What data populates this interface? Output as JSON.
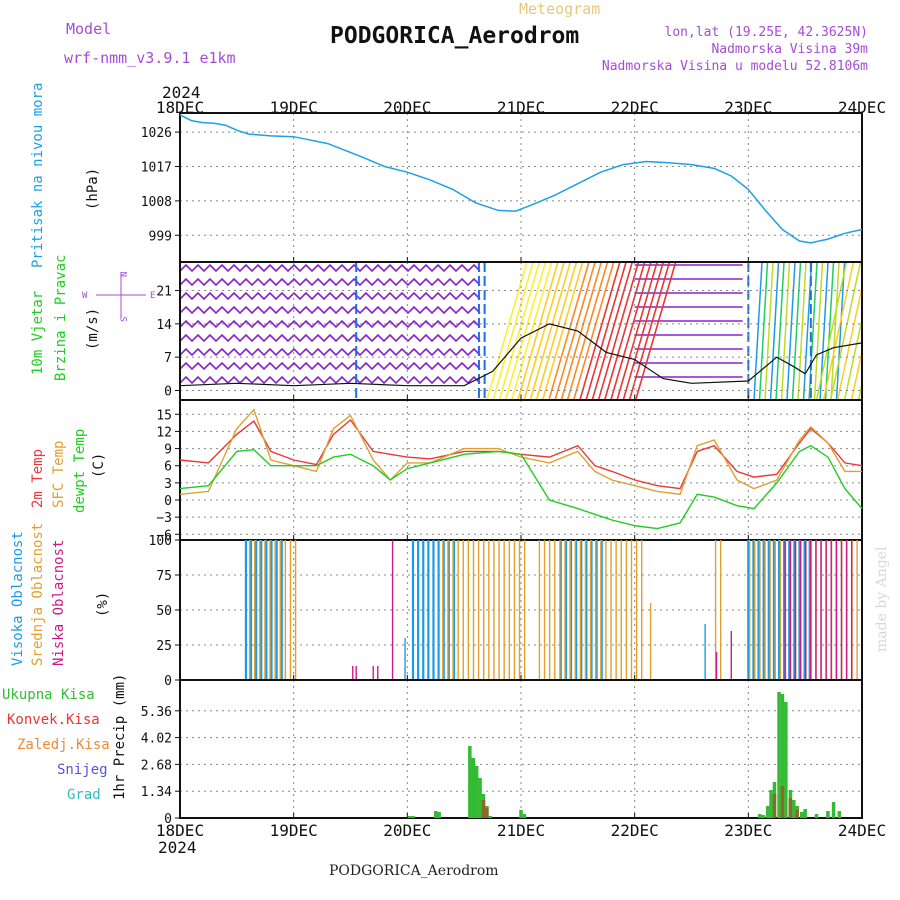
{
  "header": {
    "model_label": "Model",
    "model_name": "wrf-nmm_v3.9.1 e1km",
    "meteogram_label": "Meteogram",
    "station": "PODGORICA_Aerodrom",
    "coords": "lon,lat (19.25E, 42.3625N)",
    "elevation": "Nadmorska Visina 39m",
    "model_elevation": "Nadmorska Visina u modelu 52.8106m",
    "year_top": "2024",
    "year_bottom": "2024",
    "footer_station": "PODGORICA_Aerodrom",
    "watermark": "made by Angel"
  },
  "colors": {
    "pressure": "#1ea0e6",
    "wind_label": "#22cc22",
    "temp2m": "#e83a3a",
    "sfc": "#e0a030",
    "dewpt": "#22cc22",
    "high_cloud": "#1e9be6",
    "mid_cloud": "#e0a030",
    "low_cloud": "#cc1a8a",
    "total_precip": "#33bb33",
    "conv_precip": "#ee3333",
    "frozen_precip": "#ee8833",
    "snow": "#5555dd",
    "hail": "#33bbbb",
    "model_text": "#a64bd6",
    "wind_barb": "#8822cc"
  },
  "chart_data": [
    {
      "type": "line",
      "name": "pressure-panel",
      "ylabel_main": "Pritisak na nivou mora",
      "ylabel_unit": "(hPa)",
      "x_ticks": [
        "18DEC",
        "19DEC",
        "20DEC",
        "21DEC",
        "22DEC",
        "23DEC",
        "24DEC"
      ],
      "ylim": [
        992,
        1031
      ],
      "y_ticks": [
        999,
        1008,
        1017,
        1026
      ],
      "x": [
        0,
        0.1,
        0.2,
        0.3,
        0.4,
        0.5,
        0.6,
        0.8,
        1.0,
        1.3,
        1.6,
        1.8,
        2.0,
        2.2,
        2.4,
        2.6,
        2.8,
        2.95,
        3.1,
        3.3,
        3.5,
        3.7,
        3.9,
        4.1,
        4.3,
        4.5,
        4.7,
        4.85,
        5.0,
        5.15,
        5.3,
        5.45,
        5.55,
        5.7,
        5.85,
        6.0
      ],
      "values": [
        1030.5,
        1029.0,
        1028.5,
        1028.3,
        1027.8,
        1026.5,
        1025.5,
        1025.0,
        1024.8,
        1023.0,
        1019.5,
        1017.0,
        1015.5,
        1013.5,
        1011.0,
        1007.5,
        1005.5,
        1005.3,
        1007.0,
        1009.5,
        1012.5,
        1015.5,
        1017.5,
        1018.3,
        1018.0,
        1017.5,
        1016.5,
        1014.5,
        1011.0,
        1005.5,
        1000.5,
        997.5,
        997.0,
        998.0,
        999.5,
        1000.5
      ]
    },
    {
      "type": "line",
      "name": "wind-panel",
      "ylabel_main": "10m Vjetar",
      "ylabel_sub": "Brzina i Pravac",
      "ylabel_unit": "(m/s)",
      "compass": "N W E S",
      "ylim": [
        -2,
        27
      ],
      "y_ticks": [
        0,
        7,
        14,
        21
      ],
      "x": [
        0,
        0.5,
        1.0,
        1.5,
        2.0,
        2.5,
        2.75,
        3.0,
        3.25,
        3.5,
        3.75,
        4.0,
        4.25,
        4.5,
        5.0,
        5.25,
        5.4,
        5.5,
        5.6,
        5.75,
        6.0
      ],
      "values": [
        1.0,
        1.5,
        1.0,
        1.5,
        1.0,
        1.0,
        4.0,
        11.0,
        14.0,
        12.5,
        8.0,
        6.5,
        2.5,
        1.5,
        2.0,
        7.0,
        5.0,
        3.5,
        7.5,
        9.0,
        10.0
      ]
    },
    {
      "type": "line",
      "name": "temperature-panel",
      "ylabel_lines": [
        "2m Temp",
        "SFC Temp",
        "dewpt Temp"
      ],
      "ylabel_unit": "(C)",
      "ylim": [
        -7,
        17.5
      ],
      "y_ticks": [
        -6,
        -3,
        0,
        3,
        6,
        9,
        12,
        15
      ],
      "x": [
        0,
        0.25,
        0.5,
        0.65,
        0.8,
        1.0,
        1.2,
        1.35,
        1.5,
        1.7,
        1.85,
        2.0,
        2.2,
        2.5,
        2.8,
        3.0,
        3.25,
        3.5,
        3.65,
        3.8,
        4.0,
        4.2,
        4.4,
        4.55,
        4.7,
        4.9,
        5.05,
        5.25,
        5.45,
        5.55,
        5.7,
        5.85,
        6.0
      ],
      "series": [
        {
          "name": "2m Temp",
          "values": [
            7.0,
            6.5,
            11.5,
            13.8,
            8.5,
            7.0,
            6.2,
            11.5,
            14.0,
            8.5,
            8.0,
            7.5,
            7.2,
            8.5,
            8.5,
            8.0,
            7.5,
            9.5,
            6.0,
            5.0,
            3.5,
            2.5,
            2.0,
            8.5,
            9.5,
            5.0,
            4.0,
            4.5,
            10.0,
            12.5,
            10.0,
            6.5,
            6.0
          ]
        },
        {
          "name": "SFC Temp",
          "values": [
            1.0,
            1.5,
            12.5,
            15.8,
            7.0,
            6.0,
            5.0,
            12.5,
            14.8,
            7.0,
            3.5,
            6.5,
            6.5,
            9.0,
            9.0,
            7.5,
            6.5,
            8.5,
            5.0,
            3.5,
            2.5,
            1.5,
            1.0,
            9.5,
            10.5,
            3.5,
            2.0,
            3.5,
            10.5,
            12.8,
            10.0,
            5.0,
            5.0
          ]
        },
        {
          "name": "dewpt Temp",
          "values": [
            2.0,
            2.5,
            8.5,
            8.8,
            6.0,
            6.0,
            6.0,
            7.5,
            8.0,
            6.0,
            3.5,
            5.5,
            6.5,
            8.0,
            8.5,
            8.0,
            0.0,
            -1.5,
            -2.5,
            -3.5,
            -4.5,
            -5.0,
            -4.0,
            1.0,
            0.5,
            -1.0,
            -1.5,
            3.0,
            8.5,
            9.5,
            7.5,
            2.0,
            -1.5
          ]
        }
      ]
    },
    {
      "type": "bar",
      "name": "cloud-panel",
      "ylabel_lines": [
        "Visoka Oblacnost",
        "Srednja Oblacnost",
        "Niska Oblacnost"
      ],
      "ylabel_unit": "(%)",
      "ylim": [
        0,
        100
      ],
      "y_ticks": [
        0,
        25,
        50,
        75,
        100
      ],
      "segments": [
        {
          "name": "Visoka Oblacnost",
          "ranges": [
            [
              0.58,
              0.92
            ],
            [
              2.05,
              2.45
            ],
            [
              3.35,
              3.75
            ],
            [
              5.0,
              5.55
            ]
          ],
          "level": 100
        },
        {
          "name": "Srednja Oblacnost",
          "ranges": [
            [
              0.6,
              1.05
            ],
            [
              2.3,
              3.05
            ],
            [
              3.15,
              4.1
            ],
            [
              4.7,
              4.8
            ],
            [
              5.0,
              6.0
            ]
          ],
          "level": 100
        },
        {
          "name": "Niska Oblacnost",
          "ranges": [
            [
              5.3,
              5.95
            ]
          ],
          "level": 100
        }
      ],
      "small_bars": [
        {
          "series": "Niska Oblacnost",
          "x": 1.52,
          "value": 10
        },
        {
          "series": "Niska Oblacnost",
          "x": 1.55,
          "value": 10
        },
        {
          "series": "Niska Oblacnost",
          "x": 1.7,
          "value": 10
        },
        {
          "series": "Niska Oblacnost",
          "x": 1.74,
          "value": 10
        },
        {
          "series": "Niska Oblacnost",
          "x": 1.87,
          "value": 100
        },
        {
          "series": "Visoka Oblacnost",
          "x": 1.98,
          "value": 30
        },
        {
          "series": "Srednja Oblacnost",
          "x": 4.14,
          "value": 55
        },
        {
          "series": "Niska Oblacnost",
          "x": 4.72,
          "value": 20
        },
        {
          "series": "Niska Oblacnost",
          "x": 4.85,
          "value": 35
        },
        {
          "series": "Visoka Oblacnost",
          "x": 4.62,
          "value": 40
        }
      ]
    },
    {
      "type": "bar",
      "name": "precip-panel",
      "ylabel_lines": [
        "Ukupna Kisa",
        "Konvek.Kisa",
        "Zaledj.Kisa",
        "Snijeg",
        "Grad"
      ],
      "ylabel_unit": "1hr Precip (mm)",
      "ylim": [
        0,
        6.9
      ],
      "y_ticks": [
        0,
        1.34,
        2.68,
        4.02,
        5.36
      ],
      "series": [
        {
          "name": "Ukupna Kisa",
          "x": [
            2.02,
            2.05,
            2.25,
            2.28,
            2.55,
            2.58,
            2.61,
            2.64,
            2.67,
            2.7,
            2.73,
            3.0,
            3.03,
            5.1,
            5.13,
            5.17,
            5.2,
            5.23,
            5.27,
            5.3,
            5.33,
            5.37,
            5.4,
            5.43,
            5.47,
            5.5,
            5.6,
            5.7,
            5.75,
            5.8
          ],
          "values": [
            0.1,
            0.1,
            0.35,
            0.3,
            3.6,
            3.0,
            2.6,
            2.0,
            1.2,
            0.6,
            0.1,
            0.4,
            0.2,
            0.2,
            0.15,
            0.6,
            1.4,
            1.8,
            6.3,
            6.2,
            5.8,
            1.4,
            0.9,
            0.6,
            0.3,
            0.45,
            0.2,
            0.35,
            0.8,
            0.35
          ]
        },
        {
          "name": "Konvek.Kisa",
          "x": [
            2.67,
            2.7,
            5.23,
            5.3,
            5.37,
            5.43
          ],
          "values": [
            0.9,
            0.5,
            1.2,
            1.6,
            1.0,
            0.4
          ]
        }
      ]
    }
  ]
}
